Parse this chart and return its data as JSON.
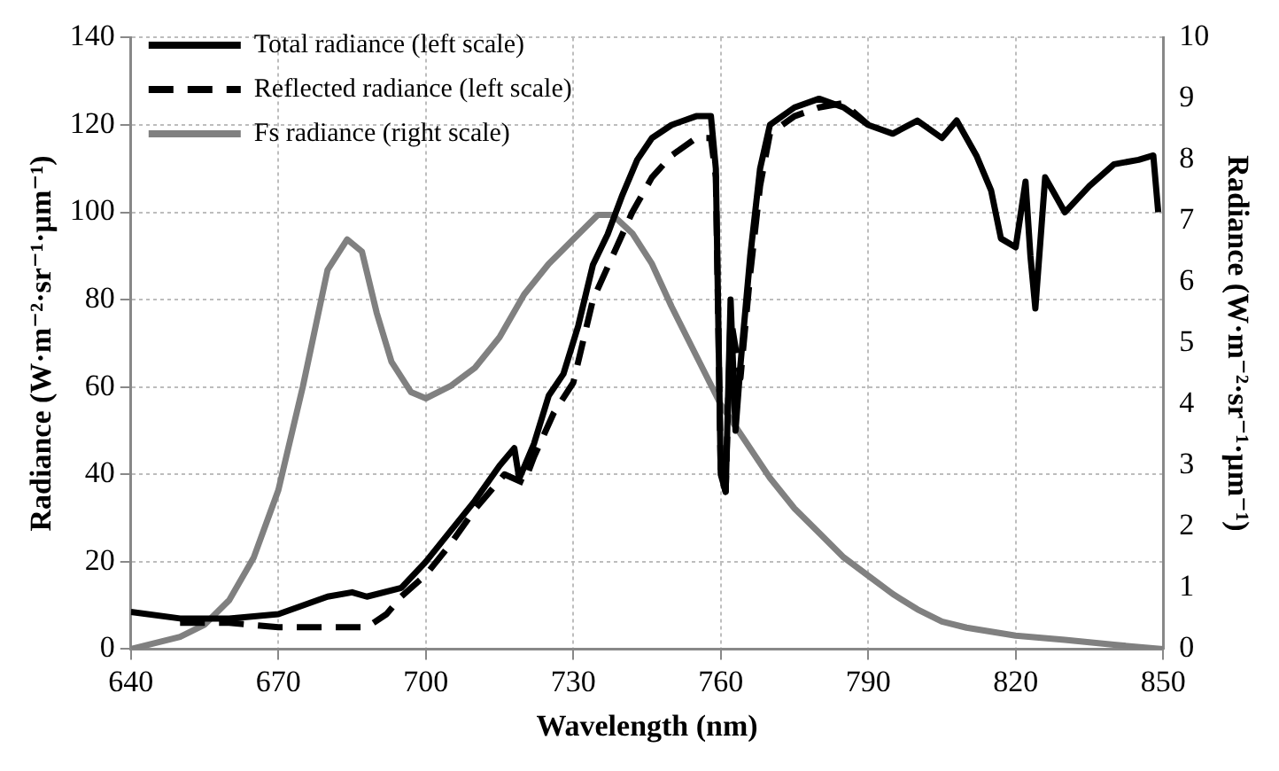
{
  "chart_data": {
    "type": "line",
    "xlabel": "Wavelength (nm)",
    "ylabel": "Radiance (W·m⁻²·sr⁻¹·µm⁻¹)",
    "y2label": "Radiance (W·m⁻²·sr⁻¹·µm⁻¹)",
    "xlim": [
      640,
      850
    ],
    "xticks": [
      640,
      670,
      700,
      730,
      760,
      790,
      820,
      850
    ],
    "ylim": [
      0,
      140
    ],
    "yticks": [
      0,
      20,
      40,
      60,
      80,
      100,
      120,
      140
    ],
    "y2lim": [
      0,
      10
    ],
    "y2ticks": [
      0,
      1,
      2,
      3,
      4,
      5,
      6,
      7,
      8,
      9,
      10
    ],
    "grid": true,
    "legend": "top left",
    "marker": "none",
    "series": [
      {
        "name": "Total radiance (left scale)",
        "color": "#000000",
        "line_style": "solid",
        "x": [
          640,
          650,
          660,
          670,
          680,
          685,
          688,
          695,
          700,
          705,
          710,
          715,
          718,
          719,
          722,
          725,
          728,
          731,
          734,
          737,
          740,
          743,
          746,
          750,
          755,
          758,
          759,
          760,
          761,
          762,
          763,
          764,
          766,
          768,
          770,
          775,
          780,
          785,
          790,
          795,
          800,
          805,
          808,
          812,
          815,
          817,
          820,
          822,
          823,
          824,
          826,
          828,
          830,
          835,
          840,
          845,
          848,
          849
        ],
        "values": [
          8.5,
          7,
          7,
          8,
          12,
          13,
          12,
          14,
          20,
          27,
          34,
          42,
          46,
          39,
          47,
          58,
          63,
          74,
          88,
          95,
          104,
          112,
          117,
          120,
          122,
          122,
          110,
          40,
          36,
          80,
          50,
          65,
          90,
          110,
          120,
          124,
          126,
          124,
          120,
          118,
          121,
          117,
          121,
          113,
          105,
          94,
          92,
          107,
          90,
          78,
          108,
          104,
          100,
          106,
          111,
          112,
          113,
          100
        ]
      },
      {
        "name": "Reflected radiance (left scale)",
        "color": "#000000",
        "line_style": "dashed",
        "x": [
          650,
          660,
          670,
          680,
          688,
          692,
          695,
          700,
          705,
          710,
          716,
          720,
          722,
          726,
          730,
          734,
          738,
          742,
          746,
          750,
          755,
          758,
          759,
          760,
          761,
          762,
          764,
          766,
          768,
          770,
          775,
          780,
          785,
          790
        ],
        "values": [
          6,
          6,
          5,
          5,
          5,
          8,
          12,
          17,
          24,
          32,
          40,
          38,
          44,
          54,
          61,
          80,
          90,
          100,
          108,
          113,
          117,
          117,
          108,
          40,
          36,
          76,
          62,
          86,
          106,
          118,
          122,
          124,
          125,
          120
        ]
      },
      {
        "name": "Fs radiance (right scale)",
        "color": "#808080",
        "line_style": "solid",
        "axis": "y2",
        "x": [
          640,
          650,
          655,
          660,
          665,
          670,
          675,
          680,
          684,
          687,
          690,
          693,
          697,
          700,
          705,
          710,
          715,
          720,
          725,
          730,
          735,
          738,
          742,
          746,
          750,
          755,
          760,
          765,
          770,
          775,
          780,
          785,
          790,
          795,
          800,
          805,
          810,
          820,
          830,
          840,
          850
        ],
        "values": [
          0,
          0.2,
          0.4,
          0.8,
          1.5,
          2.6,
          4.3,
          6.2,
          6.7,
          6.5,
          5.5,
          4.7,
          4.2,
          4.1,
          4.3,
          4.6,
          5.1,
          5.8,
          6.3,
          6.7,
          7.1,
          7.1,
          6.8,
          6.3,
          5.6,
          4.8,
          4,
          3.4,
          2.8,
          2.3,
          1.9,
          1.5,
          1.2,
          0.9,
          0.65,
          0.45,
          0.35,
          0.22,
          0.15,
          0.07,
          0
        ]
      }
    ]
  }
}
